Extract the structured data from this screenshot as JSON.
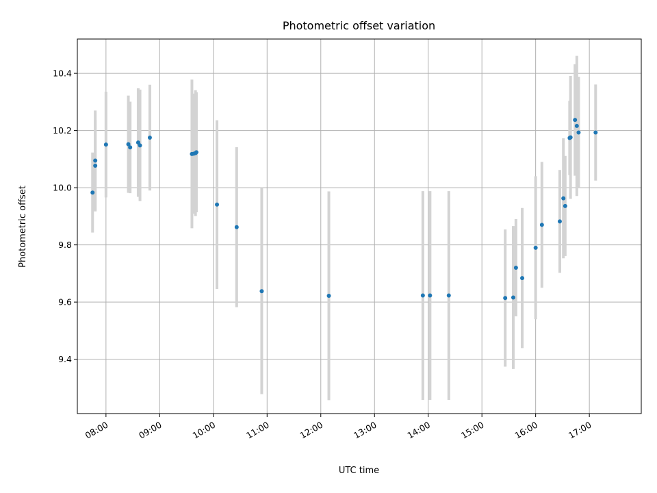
{
  "chart_data": {
    "type": "scatter",
    "title": "Photometric offset variation",
    "xlabel": "UTC time",
    "ylabel": "Photometric offset",
    "grid": true,
    "xlim": [
      "07:28",
      "17:58"
    ],
    "ylim": [
      9.21,
      10.52
    ],
    "x_ticks": [
      "08:00",
      "09:00",
      "10:00",
      "11:00",
      "12:00",
      "13:00",
      "14:00",
      "15:00",
      "16:00",
      "17:00"
    ],
    "y_ticks": [
      "9.4",
      "9.6",
      "9.8",
      "10.0",
      "10.2",
      "10.4"
    ],
    "point_color": "#1f77b4",
    "errorbar_color": "#d3d3d3",
    "points": [
      {
        "x": "07:45",
        "y": 9.983,
        "yerr": 0.14
      },
      {
        "x": "07:48",
        "y": 10.077,
        "yerr": 0.16
      },
      {
        "x": "07:48",
        "y": 10.095,
        "yerr": 0.175
      },
      {
        "x": "08:00",
        "y": 10.151,
        "yerr": 0.185
      },
      {
        "x": "08:25",
        "y": 10.152,
        "yerr": 0.17
      },
      {
        "x": "08:27",
        "y": 10.141,
        "yerr": 0.16
      },
      {
        "x": "08:36",
        "y": 10.158,
        "yerr": 0.19
      },
      {
        "x": "08:38",
        "y": 10.148,
        "yerr": 0.195
      },
      {
        "x": "08:49",
        "y": 10.175,
        "yerr": 0.185
      },
      {
        "x": "09:36",
        "y": 10.118,
        "yerr": 0.26
      },
      {
        "x": "09:38",
        "y": 10.119,
        "yerr": 0.21
      },
      {
        "x": "09:40",
        "y": 10.121,
        "yerr": 0.22
      },
      {
        "x": "09:41",
        "y": 10.124,
        "yerr": 0.21
      },
      {
        "x": "10:04",
        "y": 9.941,
        "yerr": 0.295
      },
      {
        "x": "10:26",
        "y": 9.862,
        "yerr": 0.28
      },
      {
        "x": "10:54",
        "y": 9.638,
        "yerr": 0.36
      },
      {
        "x": "12:09",
        "y": 9.622,
        "yerr": 0.365
      },
      {
        "x": "13:54",
        "y": 9.623,
        "yerr": 0.365
      },
      {
        "x": "14:02",
        "y": 9.623,
        "yerr": 0.365
      },
      {
        "x": "14:23",
        "y": 9.623,
        "yerr": 0.365
      },
      {
        "x": "15:26",
        "y": 9.614,
        "yerr": 0.24
      },
      {
        "x": "15:35",
        "y": 9.616,
        "yerr": 0.25
      },
      {
        "x": "15:38",
        "y": 9.72,
        "yerr": 0.17
      },
      {
        "x": "15:45",
        "y": 9.684,
        "yerr": 0.245
      },
      {
        "x": "16:00",
        "y": 9.79,
        "yerr": 0.25
      },
      {
        "x": "16:07",
        "y": 9.87,
        "yerr": 0.22
      },
      {
        "x": "16:27",
        "y": 9.882,
        "yerr": 0.18
      },
      {
        "x": "16:31",
        "y": 9.963,
        "yerr": 0.21
      },
      {
        "x": "16:33",
        "y": 9.936,
        "yerr": 0.175
      },
      {
        "x": "16:38",
        "y": 10.174,
        "yerr": 0.13
      },
      {
        "x": "16:39",
        "y": 10.176,
        "yerr": 0.215
      },
      {
        "x": "16:44",
        "y": 10.237,
        "yerr": 0.195
      },
      {
        "x": "16:46",
        "y": 10.216,
        "yerr": 0.245
      },
      {
        "x": "16:48",
        "y": 10.193,
        "yerr": 0.195
      },
      {
        "x": "17:07",
        "y": 10.193,
        "yerr": 0.168
      }
    ]
  }
}
